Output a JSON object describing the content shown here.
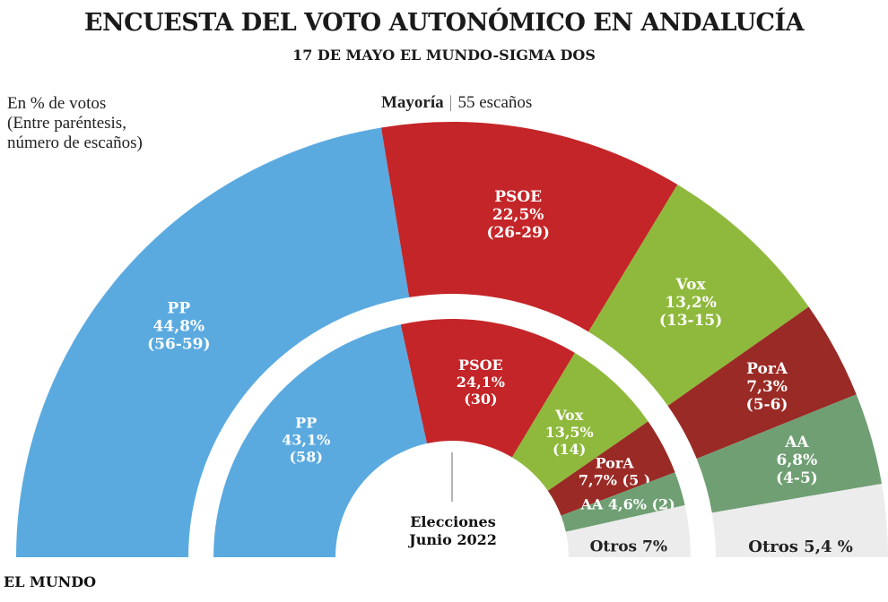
{
  "title": "ENCUESTA DEL VOTO AUTONÓMICO EN ANDALUCÍA",
  "subtitle": "17 DE  MAYO EL MUNDO-SIGMA DOS",
  "note": [
    "En % de votos",
    "(Entre paréntesis,",
    "número de escaños)"
  ],
  "majority": {
    "label": "Mayoría",
    "value": "55 escaños"
  },
  "brand": "EL MUNDO",
  "center_label": [
    "Elecciones",
    "Junio 2022"
  ],
  "colors": {
    "PP": "#5aaae0",
    "PSOE": "#c42528",
    "Vox": "#8fb93c",
    "PorA": "#9a2a25",
    "AA": "#6f9f73",
    "Otros": "#ececec"
  },
  "chart_data": [
    {
      "type": "pie",
      "name": "Encuesta 17 de mayo",
      "segments": [
        {
          "party": "PP",
          "value": 44.8,
          "pct_text": "44,8%",
          "seats": "(56-59)"
        },
        {
          "party": "PSOE",
          "value": 22.5,
          "pct_text": "22,5%",
          "seats": "(26-29)"
        },
        {
          "party": "Vox",
          "value": 13.2,
          "pct_text": "13,2%",
          "seats": "(13-15)"
        },
        {
          "party": "PorA",
          "value": 7.3,
          "pct_text": "7,3%",
          "seats": "(5-6)"
        },
        {
          "party": "AA",
          "value": 6.8,
          "pct_text": "6,8%",
          "seats": "(4-5)"
        },
        {
          "party": "Otros",
          "value": 5.4,
          "pct_text": "Otros 5,4 %",
          "seats": ""
        }
      ]
    },
    {
      "type": "pie",
      "name": "Elecciones Junio 2022",
      "segments": [
        {
          "party": "PP",
          "value": 43.1,
          "pct_text": "43,1%",
          "seats": "(58)"
        },
        {
          "party": "PSOE",
          "value": 24.1,
          "pct_text": "24,1%",
          "seats": "(30)"
        },
        {
          "party": "Vox",
          "value": 13.5,
          "pct_text": "13,5%",
          "seats": "(14)"
        },
        {
          "party": "PorA",
          "value": 7.7,
          "pct_text": "7,7% (5 )",
          "seats": ""
        },
        {
          "party": "AA",
          "value": 4.6,
          "pct_text": "AA 4,6% (2)",
          "seats": ""
        },
        {
          "party": "Otros",
          "value": 7,
          "pct_text": "Otros 7%",
          "seats": ""
        }
      ]
    }
  ]
}
